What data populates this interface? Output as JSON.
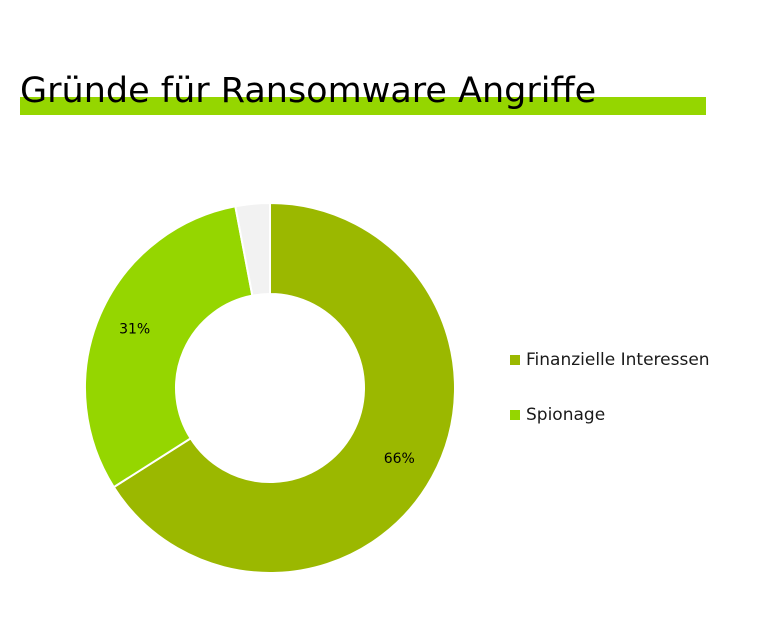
{
  "title": "Gründe für Ransomware Angriffe",
  "colors": {
    "accent_bar": "#95d600"
  },
  "chart_data": {
    "type": "pie",
    "variant": "donut",
    "title": "Gründe für Ransomware Angriffe",
    "slices": [
      {
        "name": "Finanzielle Interessen",
        "value": 66,
        "label": "66%",
        "color": "#9bb800"
      },
      {
        "name": "Spionage",
        "value": 31,
        "label": "31%",
        "color": "#95d600"
      },
      {
        "name": "",
        "value": 3,
        "label": "",
        "color": "#f2f2f2"
      }
    ],
    "legend": {
      "placement": "right",
      "entries": [
        "Finanzielle Interessen",
        "Spionage"
      ]
    }
  }
}
